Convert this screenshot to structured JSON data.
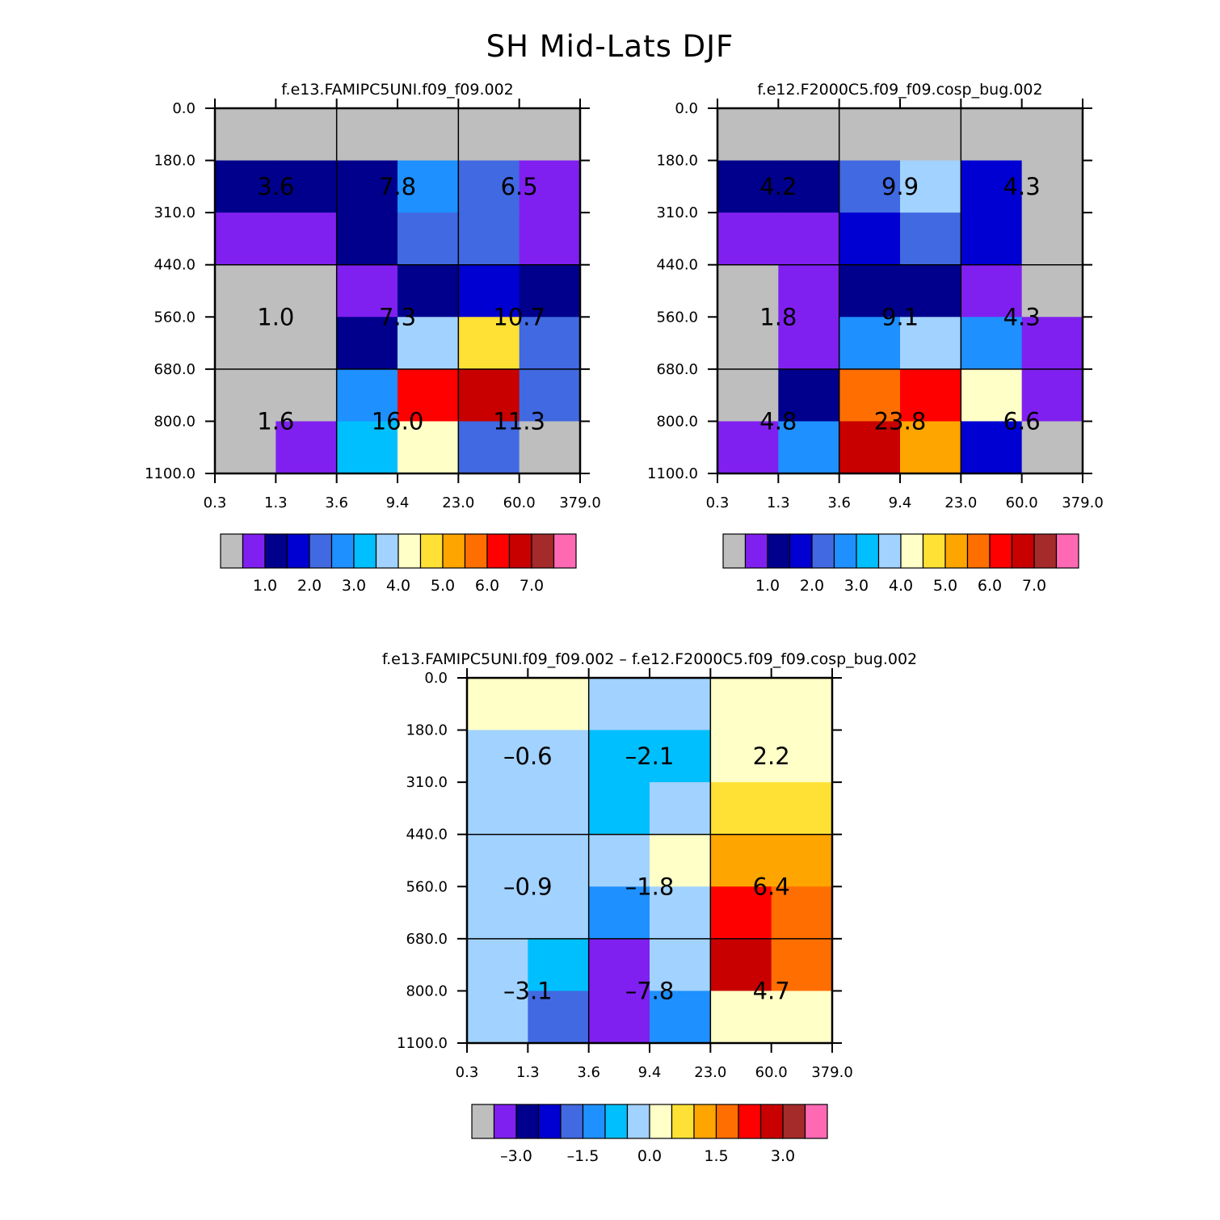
{
  "figure_title": "SH Mid-Lats DJF",
  "colors": {
    "gray": "#bebebe",
    "violet": "#8020f0",
    "navy": "#00008c",
    "blue": "#0000d2",
    "royalblue": "#4169e1",
    "dodgerblue": "#1e90ff",
    "deepskyblue": "#00bfff",
    "lightblue": "#a2d2ff",
    "lightyellow": "#ffffc8",
    "gold": "#ffe135",
    "orange": "#ffa500",
    "darkorange": "#ff6e00",
    "red": "#ff0000",
    "darkred": "#c80000",
    "brown": "#a52a2a",
    "pink": "#ff69b4"
  },
  "chart_data": [
    {
      "type": "heatmap",
      "title": "f.e13.FAMIPC5UNI.f09_f09.002",
      "x_tick_labels": [
        "0.3",
        "1.3",
        "3.6",
        "9.4",
        "23.0",
        "60.0",
        "379.0"
      ],
      "y_tick_labels": [
        "0.0",
        "180.0",
        "310.0",
        "440.0",
        "560.0",
        "680.0",
        "800.0",
        "1100.0"
      ],
      "cell_colors": [
        [
          "gray",
          "gray",
          "gray",
          "gray",
          "gray",
          "gray"
        ],
        [
          "navy",
          "navy",
          "navy",
          "dodgerblue",
          "royalblue",
          "violet"
        ],
        [
          "violet",
          "violet",
          "navy",
          "royalblue",
          "royalblue",
          "violet"
        ],
        [
          "gray",
          "gray",
          "violet",
          "navy",
          "blue",
          "navy"
        ],
        [
          "gray",
          "gray",
          "navy",
          "lightblue",
          "gold",
          "royalblue"
        ],
        [
          "gray",
          "gray",
          "dodgerblue",
          "red",
          "darkred",
          "royalblue"
        ],
        [
          "gray",
          "violet",
          "deepskyblue",
          "lightyellow",
          "royalblue",
          "gray"
        ]
      ],
      "block_values": [
        {
          "row": 0,
          "col": 0,
          "value": "3.6"
        },
        {
          "row": 0,
          "col": 1,
          "value": "7.8"
        },
        {
          "row": 0,
          "col": 2,
          "value": "6.5"
        },
        {
          "row": 1,
          "col": 0,
          "value": "1.0"
        },
        {
          "row": 1,
          "col": 1,
          "value": "7.3"
        },
        {
          "row": 1,
          "col": 2,
          "value": "10.7"
        },
        {
          "row": 2,
          "col": 0,
          "value": "1.6"
        },
        {
          "row": 2,
          "col": 1,
          "value": "16.0"
        },
        {
          "row": 2,
          "col": 2,
          "value": "11.3"
        }
      ],
      "colorbar": {
        "colors": [
          "gray",
          "violet",
          "navy",
          "blue",
          "royalblue",
          "dodgerblue",
          "deepskyblue",
          "lightblue",
          "lightyellow",
          "gold",
          "orange",
          "darkorange",
          "red",
          "darkred",
          "brown",
          "pink"
        ],
        "labels": [
          "1.0",
          "2.0",
          "3.0",
          "4.0",
          "5.0",
          "6.0",
          "7.0"
        ],
        "label_boundaries": [
          2,
          4,
          6,
          8,
          10,
          12,
          14
        ]
      }
    },
    {
      "type": "heatmap",
      "title": "f.e12.F2000C5.f09_f09.cosp_bug.002",
      "x_tick_labels": [
        "0.3",
        "1.3",
        "3.6",
        "9.4",
        "23.0",
        "60.0",
        "379.0"
      ],
      "y_tick_labels": [
        "0.0",
        "180.0",
        "310.0",
        "440.0",
        "560.0",
        "680.0",
        "800.0",
        "1100.0"
      ],
      "cell_colors": [
        [
          "gray",
          "gray",
          "gray",
          "gray",
          "gray",
          "gray"
        ],
        [
          "navy",
          "navy",
          "royalblue",
          "lightblue",
          "blue",
          "gray"
        ],
        [
          "violet",
          "violet",
          "blue",
          "royalblue",
          "blue",
          "gray"
        ],
        [
          "gray",
          "violet",
          "navy",
          "navy",
          "violet",
          "gray"
        ],
        [
          "gray",
          "violet",
          "dodgerblue",
          "lightblue",
          "dodgerblue",
          "violet"
        ],
        [
          "gray",
          "navy",
          "darkorange",
          "red",
          "lightyellow",
          "violet"
        ],
        [
          "violet",
          "dodgerblue",
          "darkred",
          "orange",
          "blue",
          "gray"
        ]
      ],
      "block_values": [
        {
          "row": 0,
          "col": 0,
          "value": "4.2"
        },
        {
          "row": 0,
          "col": 1,
          "value": "9.9"
        },
        {
          "row": 0,
          "col": 2,
          "value": "4.3"
        },
        {
          "row": 1,
          "col": 0,
          "value": "1.8"
        },
        {
          "row": 1,
          "col": 1,
          "value": "9.1"
        },
        {
          "row": 1,
          "col": 2,
          "value": "4.3"
        },
        {
          "row": 2,
          "col": 0,
          "value": "4.8"
        },
        {
          "row": 2,
          "col": 1,
          "value": "23.8"
        },
        {
          "row": 2,
          "col": 2,
          "value": "6.6"
        }
      ],
      "colorbar": {
        "colors": [
          "gray",
          "violet",
          "navy",
          "blue",
          "royalblue",
          "dodgerblue",
          "deepskyblue",
          "lightblue",
          "lightyellow",
          "gold",
          "orange",
          "darkorange",
          "red",
          "darkred",
          "brown",
          "pink"
        ],
        "labels": [
          "1.0",
          "2.0",
          "3.0",
          "4.0",
          "5.0",
          "6.0",
          "7.0"
        ],
        "label_boundaries": [
          2,
          4,
          6,
          8,
          10,
          12,
          14
        ]
      }
    },
    {
      "type": "heatmap",
      "title": "f.e13.FAMIPC5UNI.f09_f09.002 – f.e12.F2000C5.f09_f09.cosp_bug.002",
      "x_tick_labels": [
        "0.3",
        "1.3",
        "3.6",
        "9.4",
        "23.0",
        "60.0",
        "379.0"
      ],
      "y_tick_labels": [
        "0.0",
        "180.0",
        "310.0",
        "440.0",
        "560.0",
        "680.0",
        "800.0",
        "1100.0"
      ],
      "cell_colors": [
        [
          "lightyellow",
          "lightyellow",
          "lightblue",
          "lightblue",
          "lightyellow",
          "lightyellow"
        ],
        [
          "lightblue",
          "lightblue",
          "deepskyblue",
          "deepskyblue",
          "lightyellow",
          "lightyellow"
        ],
        [
          "lightblue",
          "lightblue",
          "deepskyblue",
          "lightblue",
          "gold",
          "gold"
        ],
        [
          "lightblue",
          "lightblue",
          "lightblue",
          "lightyellow",
          "orange",
          "orange"
        ],
        [
          "lightblue",
          "lightblue",
          "dodgerblue",
          "lightblue",
          "red",
          "darkorange"
        ],
        [
          "lightblue",
          "deepskyblue",
          "violet",
          "lightblue",
          "darkred",
          "darkorange"
        ],
        [
          "lightblue",
          "royalblue",
          "violet",
          "dodgerblue",
          "lightyellow",
          "lightyellow"
        ]
      ],
      "block_values": [
        {
          "row": 0,
          "col": 0,
          "value": "–0.6"
        },
        {
          "row": 0,
          "col": 1,
          "value": "–2.1"
        },
        {
          "row": 0,
          "col": 2,
          "value": "2.2"
        },
        {
          "row": 1,
          "col": 0,
          "value": "–0.9"
        },
        {
          "row": 1,
          "col": 1,
          "value": "–1.8"
        },
        {
          "row": 1,
          "col": 2,
          "value": "6.4"
        },
        {
          "row": 2,
          "col": 0,
          "value": "–3.1"
        },
        {
          "row": 2,
          "col": 1,
          "value": "–7.8"
        },
        {
          "row": 2,
          "col": 2,
          "value": "4.7"
        }
      ],
      "colorbar": {
        "colors": [
          "gray",
          "violet",
          "navy",
          "blue",
          "royalblue",
          "dodgerblue",
          "deepskyblue",
          "lightblue",
          "lightyellow",
          "gold",
          "orange",
          "darkorange",
          "red",
          "darkred",
          "brown",
          "pink"
        ],
        "labels": [
          "–3.0",
          "–1.5",
          "0.0",
          "1.5",
          "3.0"
        ],
        "label_boundaries": [
          2,
          5,
          8,
          11,
          14
        ]
      }
    }
  ]
}
